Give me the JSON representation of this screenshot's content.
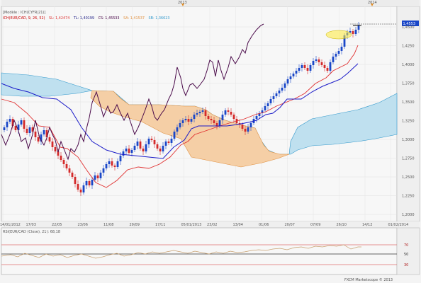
{
  "main": {
    "module_label": "[Modèle : ICH(CYFR|21)]",
    "legend": [
      {
        "text": "ICH(EUR/CAD, 9, 26, 52)",
        "color": "#cc0000"
      },
      {
        "text": "SL: 1,42474",
        "color": "#dd3333"
      },
      {
        "text": "TL: 1,40199",
        "color": "#222288"
      },
      {
        "text": "CS: 1,45533",
        "color": "#440044"
      },
      {
        "text": "SA: 1,41537",
        "color": "#e09040"
      },
      {
        "text": "SB: 1,36623",
        "color": "#3399cc"
      }
    ],
    "year_markers": [
      "2013",
      "2014"
    ],
    "price_badge": "1,4553",
    "y_ticks": [
      "1,4500",
      "1,4250",
      "1,4000",
      "1,3750",
      "1,3500",
      "1,3250",
      "1,3000",
      "1,2750",
      "1,2500",
      "1,2250",
      "1,2000"
    ],
    "x_ticks": [
      "14/01/2012",
      "17/03",
      "22/05",
      "23/06",
      "11/08",
      "29/09",
      "17/11",
      "05/01/2013",
      "23/02",
      "13/04",
      "01/06",
      "20/07",
      "07/09",
      "26/10",
      "14/12",
      "01/02/2014"
    ]
  },
  "rsi": {
    "label": "RSI(EUR/CAD (Close), 21): 68,18",
    "levels": [
      "70",
      "50",
      "30"
    ]
  },
  "footer": {
    "copyright": "FXCM Marketscope © 2013"
  },
  "colors": {
    "bull": "#1a47c8",
    "bear": "#d42a2a",
    "kumo_up": "#bfe0ef",
    "kumo_down": "#f5cfa6",
    "tenkan": "#e03030",
    "kijun": "#1a1ac8",
    "chikou": "#4a0a4a"
  }
}
